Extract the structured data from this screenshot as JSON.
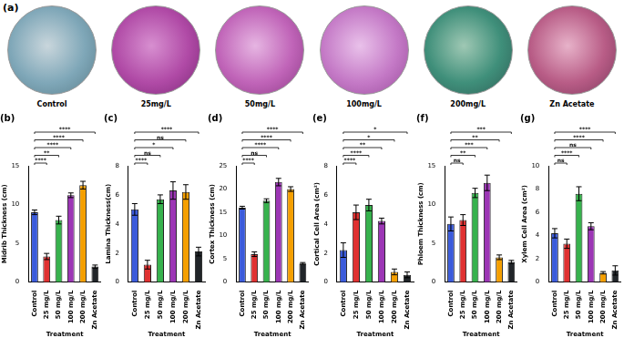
{
  "panel_a": {
    "label": "(a)",
    "images": [
      "Control",
      "25mg/L",
      "50mg/L",
      "100mg/L",
      "200mg/L",
      "Zn Acetate"
    ]
  },
  "chart_data": [
    {
      "type": "bar",
      "title": "(b)",
      "x_label": "Treatment",
      "y_label": "Midrib Thickness (cm)",
      "categories": [
        "Control",
        "25 mg/L",
        "50 mg/L",
        "100 mg/L",
        "200 mg/L",
        "Zn Acetate"
      ],
      "values": [
        9,
        3.3,
        8,
        11.2,
        12.5,
        2
      ],
      "errors": [
        0.3,
        0.4,
        0.5,
        0.3,
        0.5,
        0.2
      ],
      "colors": [
        "#3b5bdb",
        "#e03131",
        "#37b24d",
        "#9c36b5",
        "#f59f00",
        "#212529"
      ],
      "ylim": [
        0,
        15
      ],
      "yticks": [
        0,
        5,
        10,
        15
      ],
      "grid": false,
      "annotations": [
        {
          "text": "****",
          "between": [
            "Control",
            "25 mg/L"
          ]
        },
        {
          "text": "**",
          "between": [
            "Control",
            "50 mg/L"
          ]
        },
        {
          "text": "****",
          "between": [
            "Control",
            "100 mg/L"
          ]
        },
        {
          "text": "****",
          "between": [
            "Control",
            "200 mg/L"
          ]
        },
        {
          "text": "****",
          "between": [
            "Control",
            "Zn Acetate"
          ]
        }
      ]
    },
    {
      "type": "bar",
      "title": "(c)",
      "x_label": "Treatment",
      "y_label": "Lamina Thickness(cm)",
      "categories": [
        "Control",
        "25 mg/L",
        "50 mg/L",
        "100 mg/L",
        "200 mg/L",
        "Zn Acetate"
      ],
      "values": [
        5,
        1.2,
        5.7,
        6.3,
        6.2,
        2.1
      ],
      "errors": [
        0.4,
        0.3,
        0.3,
        0.6,
        0.5,
        0.3
      ],
      "colors": [
        "#3b5bdb",
        "#e03131",
        "#37b24d",
        "#9c36b5",
        "#f59f00",
        "#212529"
      ],
      "ylim": [
        0,
        8
      ],
      "yticks": [
        0,
        2,
        4,
        6,
        8
      ],
      "grid": false,
      "annotations": [
        {
          "text": "****",
          "between": [
            "Control",
            "25 mg/L"
          ]
        },
        {
          "text": "ns",
          "between": [
            "Control",
            "50 mg/L"
          ]
        },
        {
          "text": "*",
          "between": [
            "Control",
            "100 mg/L"
          ]
        },
        {
          "text": "ns",
          "between": [
            "Control",
            "200 mg/L"
          ]
        },
        {
          "text": "****",
          "between": [
            "Control",
            "Zn Acetate"
          ]
        }
      ]
    },
    {
      "type": "bar",
      "title": "(d)",
      "x_label": "Treatment",
      "y_label": "Cortex Thickness (cm)",
      "categories": [
        "Control",
        "25 mg/L",
        "50 mg/L",
        "100 mg/L",
        "200 mg/L",
        "Zn Acetate"
      ],
      "values": [
        16,
        6,
        17.5,
        21.5,
        20,
        4
      ],
      "errors": [
        0.3,
        0.5,
        0.4,
        0.8,
        0.5,
        0.2
      ],
      "colors": [
        "#3b5bdb",
        "#e03131",
        "#37b24d",
        "#9c36b5",
        "#f59f00",
        "#212529"
      ],
      "ylim": [
        0,
        25
      ],
      "yticks": [
        0,
        5,
        10,
        15,
        20,
        25
      ],
      "grid": false,
      "annotations": [
        {
          "text": "****",
          "between": [
            "Control",
            "25 mg/L"
          ]
        },
        {
          "text": "ns",
          "between": [
            "Control",
            "50 mg/L"
          ]
        },
        {
          "text": "****",
          "between": [
            "Control",
            "100 mg/L"
          ]
        },
        {
          "text": "****",
          "between": [
            "Control",
            "200 mg/L"
          ]
        },
        {
          "text": "****",
          "between": [
            "Control",
            "Zn Acetate"
          ]
        }
      ]
    },
    {
      "type": "bar",
      "title": "(e)",
      "x_label": "Treatment",
      "y_label": "Cortical Cell Area (cm²)",
      "categories": [
        "Control",
        "25 mg/L",
        "50 mg/L",
        "100 mg/L",
        "200 mg/L",
        "Zn Acetate"
      ],
      "values": [
        2.2,
        4.8,
        5.3,
        4.2,
        0.7,
        0.5
      ],
      "errors": [
        0.5,
        0.5,
        0.4,
        0.2,
        0.2,
        0.2
      ],
      "colors": [
        "#3b5bdb",
        "#e03131",
        "#37b24d",
        "#9c36b5",
        "#f59f00",
        "#212529"
      ],
      "ylim": [
        0,
        8
      ],
      "yticks": [
        0,
        2,
        4,
        6,
        8
      ],
      "grid": false,
      "annotations": [
        {
          "text": "****",
          "between": [
            "Control",
            "25 mg/L"
          ]
        },
        {
          "text": "****",
          "between": [
            "Control",
            "50 mg/L"
          ]
        },
        {
          "text": "**",
          "between": [
            "Control",
            "100 mg/L"
          ]
        },
        {
          "text": "*",
          "between": [
            "Control",
            "200 mg/L"
          ]
        },
        {
          "text": "*",
          "between": [
            "Control",
            "Zn Acetate"
          ]
        }
      ]
    },
    {
      "type": "bar",
      "title": "(f)",
      "x_label": "Treatment",
      "y_label": "Phloem Thickness (cm)",
      "categories": [
        "Control",
        "25 mg/L",
        "50 mg/L",
        "100 mg/L",
        "200 mg/L",
        "Zn Acetate"
      ],
      "values": [
        7.5,
        8,
        11.5,
        12.8,
        3.2,
        2.6
      ],
      "errors": [
        0.9,
        0.7,
        0.6,
        1.0,
        0.3,
        0.2
      ],
      "colors": [
        "#3b5bdb",
        "#e03131",
        "#37b24d",
        "#9c36b5",
        "#f59f00",
        "#212529"
      ],
      "ylim": [
        0,
        15
      ],
      "yticks": [
        0,
        5,
        10,
        15
      ],
      "grid": false,
      "annotations": [
        {
          "text": "ns",
          "between": [
            "Control",
            "25 mg/L"
          ]
        },
        {
          "text": "**",
          "between": [
            "Control",
            "50 mg/L"
          ]
        },
        {
          "text": "***",
          "between": [
            "Control",
            "100 mg/L"
          ]
        },
        {
          "text": "**",
          "between": [
            "Control",
            "200 mg/L"
          ]
        },
        {
          "text": "***",
          "between": [
            "Control",
            "Zn Acetate"
          ]
        }
      ]
    },
    {
      "type": "bar",
      "title": "(g)",
      "x_label": "Treatment",
      "y_label": "Xylem Cell Area (cm²)",
      "categories": [
        "Control",
        "25 mg/L",
        "50 mg/L",
        "100 mg/L",
        "200 mg/L",
        "Zn Acetate"
      ],
      "values": [
        4.2,
        3.3,
        7.6,
        4.8,
        0.8,
        1.0
      ],
      "errors": [
        0.4,
        0.4,
        0.6,
        0.3,
        0.1,
        0.4
      ],
      "colors": [
        "#3b5bdb",
        "#e03131",
        "#37b24d",
        "#9c36b5",
        "#f59f00",
        "#212529"
      ],
      "ylim": [
        0,
        10
      ],
      "yticks": [
        0,
        2,
        4,
        6,
        8,
        10
      ],
      "grid": false,
      "annotations": [
        {
          "text": "ns",
          "between": [
            "Control",
            "25 mg/L"
          ]
        },
        {
          "text": "****",
          "between": [
            "Control",
            "50 mg/L"
          ]
        },
        {
          "text": "ns",
          "between": [
            "Control",
            "100 mg/L"
          ]
        },
        {
          "text": "****",
          "between": [
            "Control",
            "200 mg/L"
          ]
        },
        {
          "text": "****",
          "between": [
            "Control",
            "Zn Acetate"
          ]
        }
      ]
    }
  ]
}
